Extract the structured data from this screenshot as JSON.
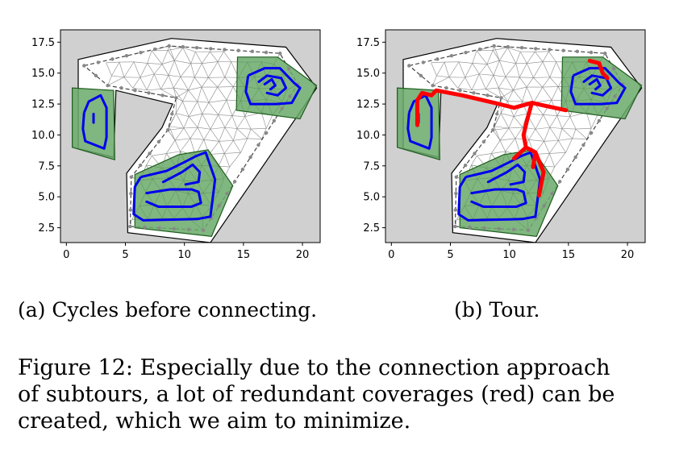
{
  "panels": [
    {
      "id": "a",
      "caption": "(a) Cycles before connecting.",
      "xticks": [
        "0",
        "5",
        "10",
        "15",
        "20"
      ],
      "yticks": [
        "2.5",
        "5.0",
        "7.5",
        "10.0",
        "12.5",
        "15.0",
        "17.5"
      ],
      "xlim": [
        -0.5,
        21.5
      ],
      "ylim": [
        1.3,
        18.5
      ],
      "show_red": false
    },
    {
      "id": "b",
      "caption": "(b) Tour.",
      "xticks": [
        "0",
        "5",
        "10",
        "15",
        "20"
      ],
      "yticks": [
        "2.5",
        "5.0",
        "7.5",
        "10.0",
        "12.5",
        "15.0",
        "17.5"
      ],
      "xlim": [
        -0.5,
        21.5
      ],
      "ylim": [
        1.3,
        18.5
      ],
      "show_red": true
    }
  ],
  "caption": {
    "lines": [
      "Figure 12: Especially due to the connection approach",
      "of subtours, a lot of redundant coverages (red) can be",
      "created, which we aim to minimize."
    ]
  },
  "colors": {
    "background": "#d0d0d0",
    "region_fill": "#ffffff",
    "mesh": "#888888",
    "green_fill": "#6aa96a",
    "green_edge": "#1e5e1e",
    "cycle": "#0000ee",
    "redundant": "#ff0000"
  }
}
